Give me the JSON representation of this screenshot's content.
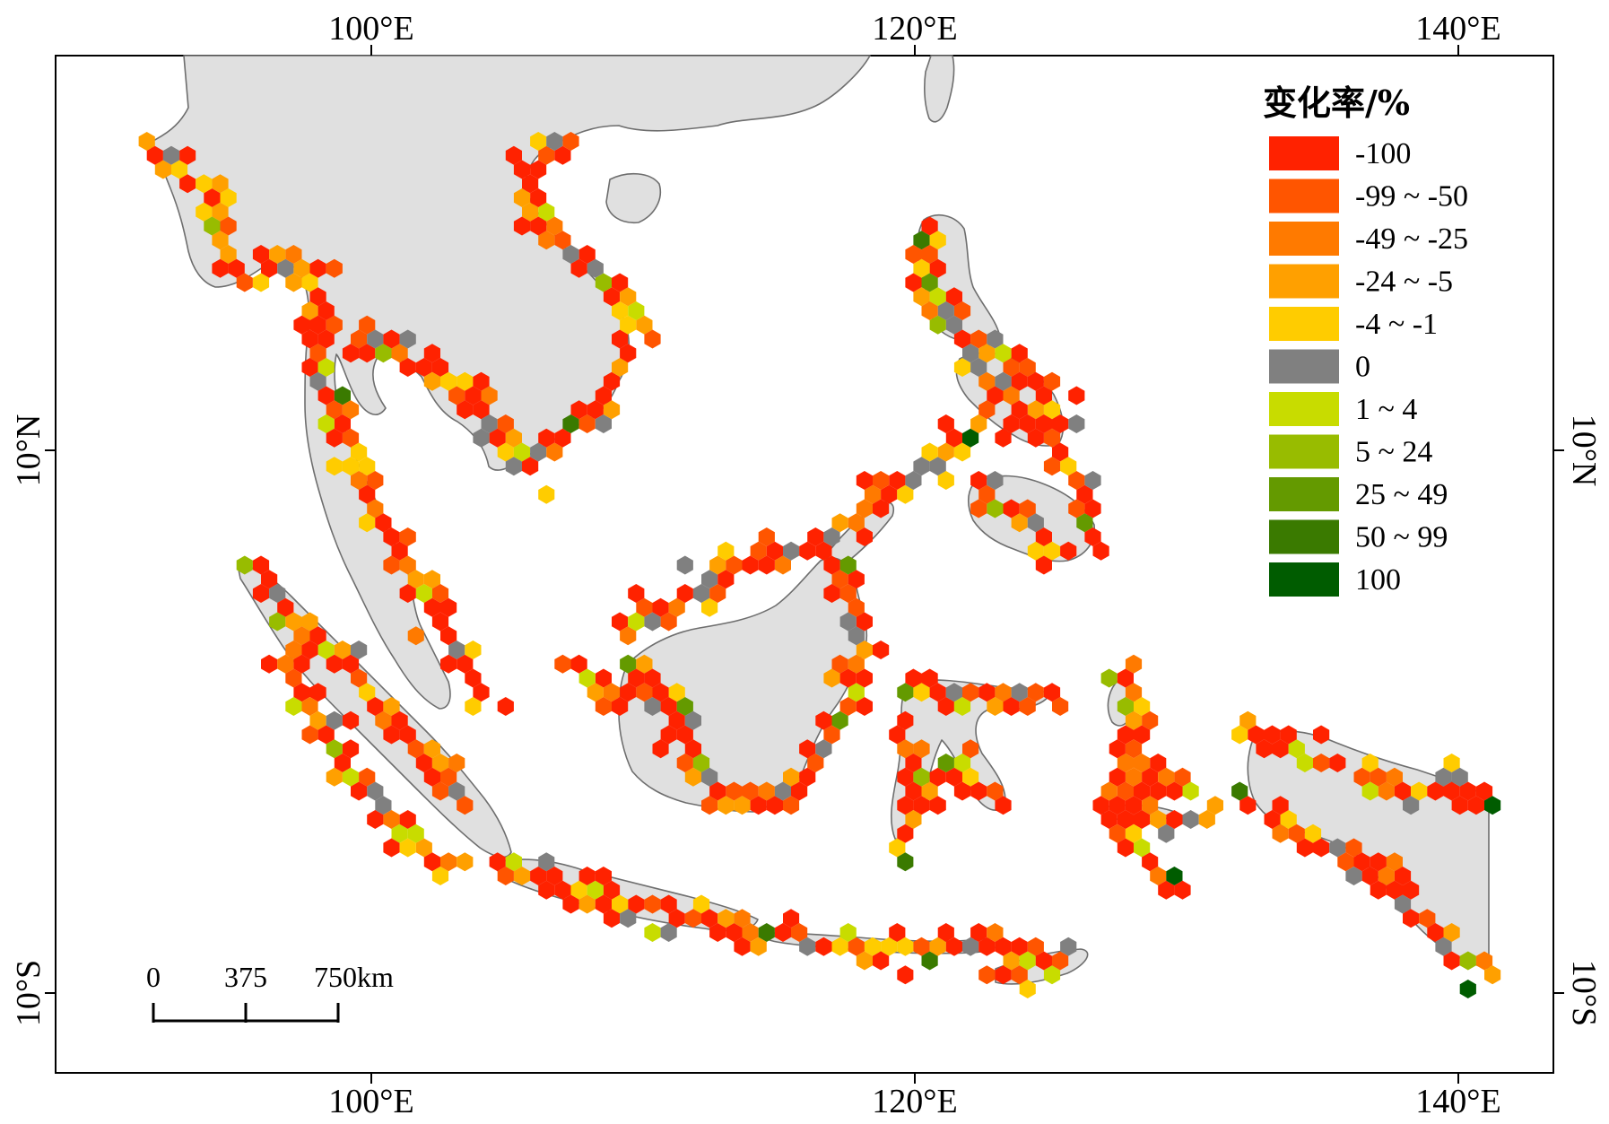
{
  "axes": {
    "top_lon": [
      "100°E",
      "120°E",
      "140°E"
    ],
    "bottom_lon": [
      "100°E",
      "120°E",
      "140°E"
    ],
    "left_lat": [
      "10°N",
      "10°S"
    ],
    "right_lat": [
      "10°N",
      "10°S"
    ]
  },
  "legend": {
    "title": "变化率/%",
    "items": [
      {
        "label": "-100",
        "color": "#ff2200"
      },
      {
        "label": "-99 ~ -50",
        "color": "#ff5500"
      },
      {
        "label": "-49 ~ -25",
        "color": "#ff7a00"
      },
      {
        "label": "-24 ~ -5",
        "color": "#ffa000"
      },
      {
        "label": "-4 ~ -1",
        "color": "#ffcc00"
      },
      {
        "label": "0",
        "color": "#808080"
      },
      {
        "label": "1 ~ 4",
        "color": "#c8dc00"
      },
      {
        "label": "5 ~ 24",
        "color": "#98bc00"
      },
      {
        "label": "25 ~ 49",
        "color": "#649a00"
      },
      {
        "label": "50 ~ 99",
        "color": "#3a7a00"
      },
      {
        "label": "100",
        "color": "#005c00"
      }
    ]
  },
  "scale_bar": {
    "labels": [
      "0",
      "375",
      "750km"
    ]
  },
  "colors": {
    "land": "#e0e0e0",
    "border": "#6e6e6e",
    "frame": "#000000"
  }
}
